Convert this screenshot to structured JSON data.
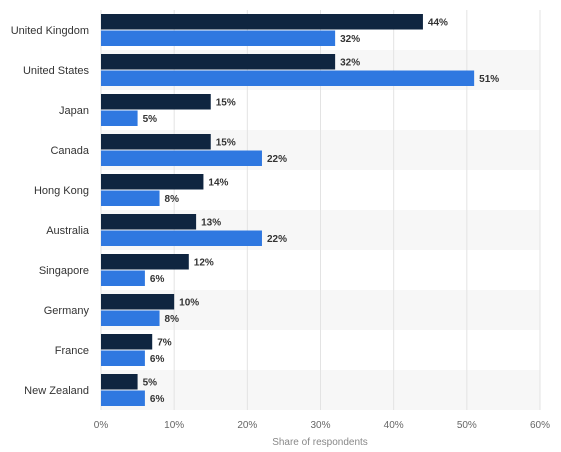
{
  "chart_data": {
    "type": "bar",
    "orientation": "horizontal",
    "categories": [
      "United Kingdom",
      "United States",
      "Japan",
      "Canada",
      "Hong Kong",
      "Australia",
      "Singapore",
      "Germany",
      "France",
      "New Zealand"
    ],
    "series": [
      {
        "color": "#0f2540",
        "values": [
          44,
          32,
          15,
          15,
          14,
          13,
          12,
          10,
          7,
          5
        ]
      },
      {
        "color": "#2f78e0",
        "values": [
          32,
          51,
          5,
          22,
          8,
          22,
          6,
          8,
          6,
          6
        ]
      }
    ],
    "xlabel": "Share of respondents",
    "xlim": [
      0,
      60
    ],
    "xticks": [
      "0%",
      "10%",
      "20%",
      "30%",
      "40%",
      "50%",
      "60%"
    ],
    "value_suffix": "%",
    "grid": true,
    "legend": "none"
  }
}
